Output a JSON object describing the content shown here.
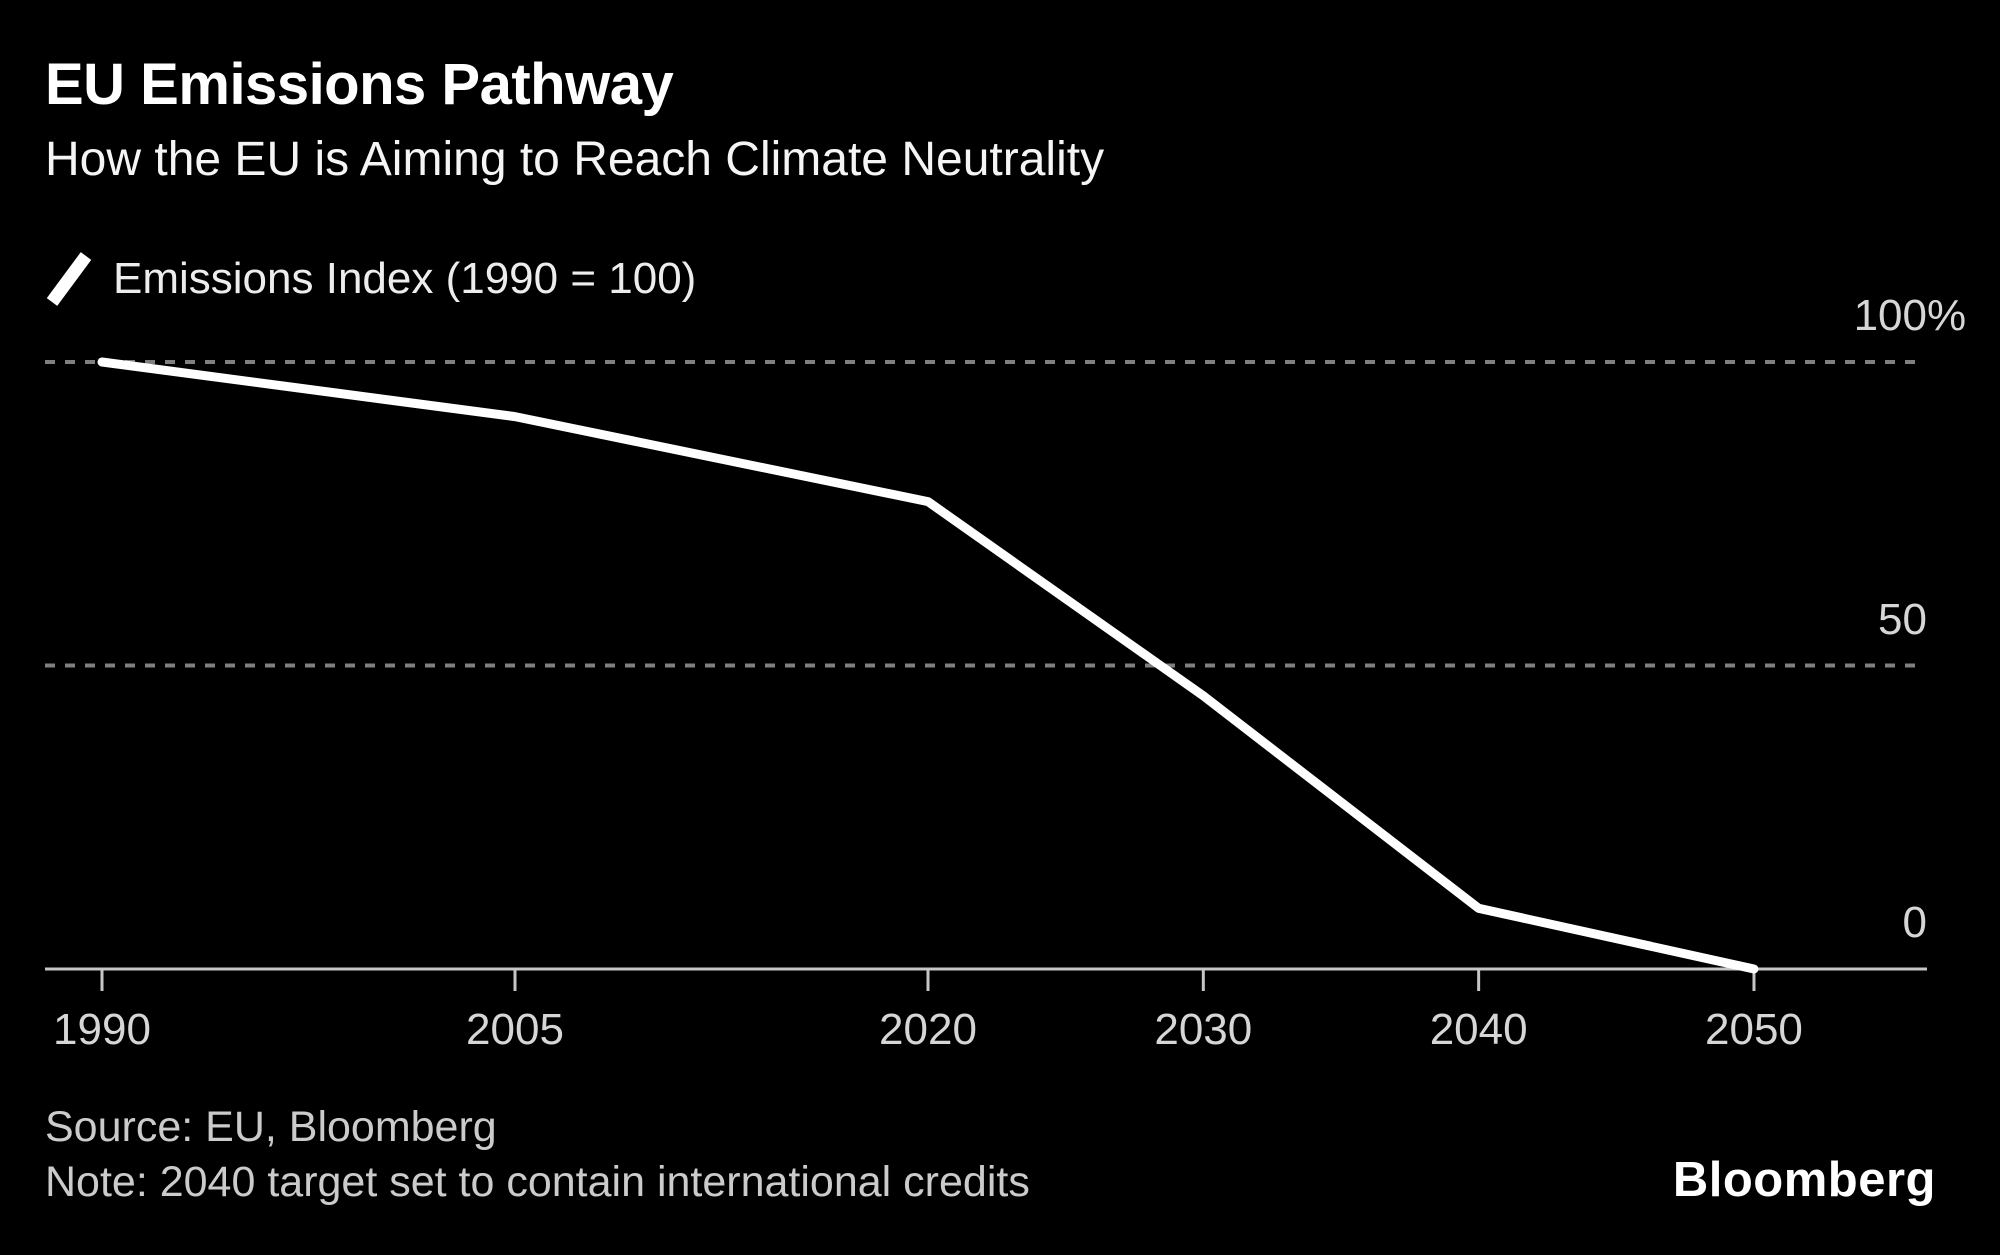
{
  "header": {
    "title": "EU Emissions Pathway",
    "subtitle": "How the EU is Aiming to Reach Climate Neutrality"
  },
  "legend": {
    "icon": "line-slash-icon",
    "label": "Emissions Index (1990 = 100)"
  },
  "chart_data": {
    "type": "line",
    "title": "EU Emissions Pathway",
    "subtitle": "How the EU is Aiming to Reach Climate Neutrality",
    "series": [
      {
        "name": "Emissions Index (1990 = 100)",
        "x": [
          1990,
          2005,
          2020,
          2030,
          2040,
          2050
        ],
        "values": [
          100,
          91,
          77,
          45,
          10,
          0
        ],
        "color": "#ffffff"
      }
    ],
    "x_ticks": [
      {
        "year": 1990,
        "label": "1990"
      },
      {
        "year": 2005,
        "label": "2005"
      },
      {
        "year": 2020,
        "label": "2020"
      },
      {
        "year": 2030,
        "label": "2030"
      },
      {
        "year": 2040,
        "label": "2040"
      },
      {
        "year": 2050,
        "label": "2050"
      }
    ],
    "y_ticks": [
      {
        "value": 100,
        "label": "100%"
      },
      {
        "value": 50,
        "label": "50"
      },
      {
        "value": 0,
        "label": "0"
      }
    ],
    "ylim": [
      0,
      100
    ],
    "xlim": [
      1988,
      2056
    ],
    "grid": "horizontal dashed gridlines at 50 and 100, solid baseline at 0",
    "legend_position": "top-left",
    "colors": {
      "background": "#000000",
      "line": "#ffffff",
      "gridline": "#7f7f7f",
      "axis": "#c6c6c6",
      "tick_text": "#d6d6d6"
    }
  },
  "footer": {
    "source": "Source: EU, Bloomberg",
    "note": "Note: 2040 target set to contain international credits"
  },
  "branding": {
    "logo": "Bloomberg"
  }
}
